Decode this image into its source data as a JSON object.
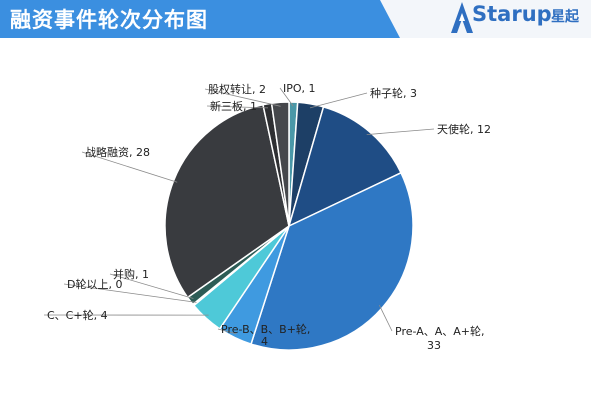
{
  "header": {
    "title": "融资事件轮次分布图",
    "brand_name": "Starup",
    "brand_cn": "星起",
    "bar_color": "#3b8fe0",
    "brand_color": "#2f6fc1"
  },
  "chart_data": {
    "type": "pie",
    "title": "",
    "slices": [
      {
        "label": "IPO",
        "value": 1,
        "color": "#4a98a8",
        "text": "IPO, 1"
      },
      {
        "label": "种子轮",
        "value": 3,
        "color": "#1d3f66",
        "text": "种子轮, 3"
      },
      {
        "label": "天使轮",
        "value": 12,
        "color": "#1f4d85",
        "text": "天使轮, 12"
      },
      {
        "label": "Pre-A、A、A+轮",
        "value": 33,
        "color": "#2f78c4",
        "text": "Pre-A、A、A+轮,",
        "text2": "33"
      },
      {
        "label": "Pre-B、B、B+轮",
        "value": 4,
        "color": "#3f9ae0",
        "text": "Pre-B、B、B+轮,",
        "text2": "4"
      },
      {
        "label": "C、C+轮",
        "value": 4,
        "color": "#4ec9d8",
        "text": "C、C+轮, 4"
      },
      {
        "label": "D轮以上",
        "value": 0,
        "color": "#2b6d6f",
        "text": "D轮以上, 0"
      },
      {
        "label": "并购",
        "value": 1,
        "color": "#2d5c56",
        "text": "并购, 1"
      },
      {
        "label": "战略融资",
        "value": 28,
        "color": "#393b3f",
        "text": "战略融资, 28"
      },
      {
        "label": "新三板",
        "value": 1,
        "color": "#2e2f32",
        "text": "新三板, 1"
      },
      {
        "label": "股权转让",
        "value": 2,
        "color": "#45474b",
        "text": "股权转让, 2"
      }
    ]
  }
}
